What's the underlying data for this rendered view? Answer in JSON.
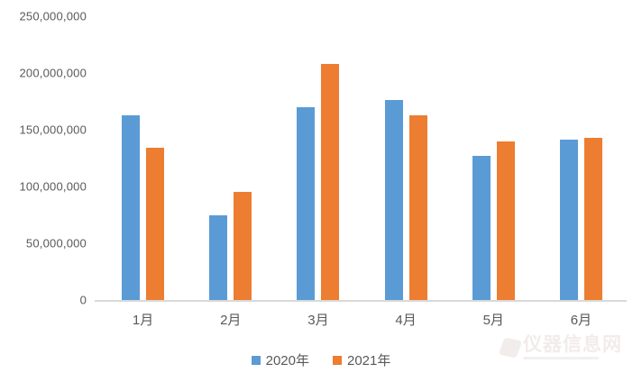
{
  "chart_data": {
    "type": "bar",
    "title": "",
    "xlabel": "",
    "ylabel": "",
    "categories": [
      "1月",
      "2月",
      "3月",
      "4月",
      "5月",
      "6月"
    ],
    "series": [
      {
        "name": "2020年",
        "color": "#5B9BD5",
        "values": [
          163000000,
          75000000,
          170000000,
          176000000,
          127000000,
          141000000
        ]
      },
      {
        "name": "2021年",
        "color": "#ED7D31",
        "values": [
          134000000,
          95000000,
          208000000,
          163000000,
          140000000,
          143000000
        ]
      }
    ],
    "ylim": [
      0,
      250000000
    ],
    "y_tick_labels": [
      "250,000,000",
      "200,000,000",
      "150,000,000",
      "100,000,000",
      "50,000,000",
      "0"
    ],
    "grid": false,
    "legend_position": "bottom"
  },
  "watermark": {
    "text": "仪器信息网"
  },
  "colors": {
    "axis_line": "#d9d9d9",
    "tick_text": "#595959",
    "series_2020": "#5B9BD5",
    "series_2021": "#ED7D31"
  }
}
